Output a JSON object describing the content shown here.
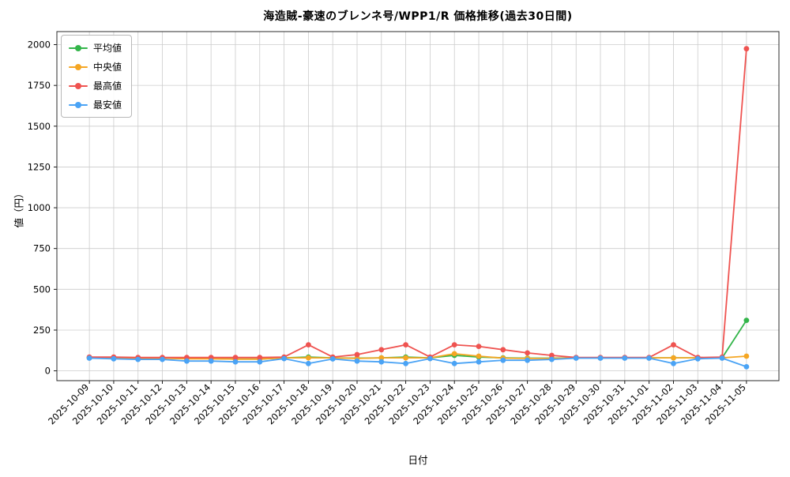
{
  "chart_data": {
    "type": "line",
    "title": "海造賊-豪速のブレンネ号/WPP1/R 価格推移(過去30日間)",
    "xlabel": "日付",
    "ylabel": "値（円）",
    "x": [
      "2025-10-09",
      "2025-10-10",
      "2025-10-11",
      "2025-10-12",
      "2025-10-13",
      "2025-10-14",
      "2025-10-15",
      "2025-10-16",
      "2025-10-17",
      "2025-10-18",
      "2025-10-19",
      "2025-10-20",
      "2025-10-21",
      "2025-10-22",
      "2025-10-23",
      "2025-10-24",
      "2025-10-25",
      "2025-10-26",
      "2025-10-27",
      "2025-10-28",
      "2025-10-29",
      "2025-10-30",
      "2025-10-31",
      "2025-11-01",
      "2025-11-02",
      "2025-11-03",
      "2025-11-04",
      "2025-11-05"
    ],
    "series": [
      {
        "name": "平均値",
        "color": "#33b54a",
        "values": [
          80,
          80,
          78,
          78,
          75,
          75,
          72,
          72,
          80,
          85,
          80,
          78,
          80,
          85,
          80,
          95,
          85,
          80,
          78,
          78,
          80,
          80,
          80,
          80,
          80,
          80,
          80,
          310
        ]
      },
      {
        "name": "中央値",
        "color": "#f5a623",
        "values": [
          80,
          80,
          78,
          78,
          74,
          74,
          72,
          72,
          80,
          80,
          80,
          76,
          80,
          80,
          80,
          105,
          90,
          78,
          76,
          76,
          80,
          80,
          80,
          80,
          80,
          80,
          80,
          90
        ]
      },
      {
        "name": "最高値",
        "color": "#ef5350",
        "values": [
          85,
          85,
          82,
          82,
          82,
          82,
          82,
          82,
          85,
          160,
          85,
          100,
          130,
          160,
          85,
          160,
          150,
          130,
          110,
          95,
          82,
          82,
          82,
          82,
          160,
          82,
          85,
          1975
        ]
      },
      {
        "name": "最安値",
        "color": "#4aa3f5",
        "values": [
          78,
          74,
          70,
          70,
          60,
          60,
          55,
          55,
          75,
          45,
          73,
          60,
          55,
          45,
          75,
          45,
          55,
          65,
          65,
          70,
          78,
          78,
          78,
          78,
          45,
          74,
          78,
          25
        ]
      }
    ],
    "ylim": [
      -60,
      2080
    ],
    "yticks": [
      0,
      250,
      500,
      750,
      1000,
      1250,
      1500,
      1750,
      2000
    ],
    "grid": true,
    "grid_color": "#cccccc",
    "legend_position": "upper left"
  }
}
